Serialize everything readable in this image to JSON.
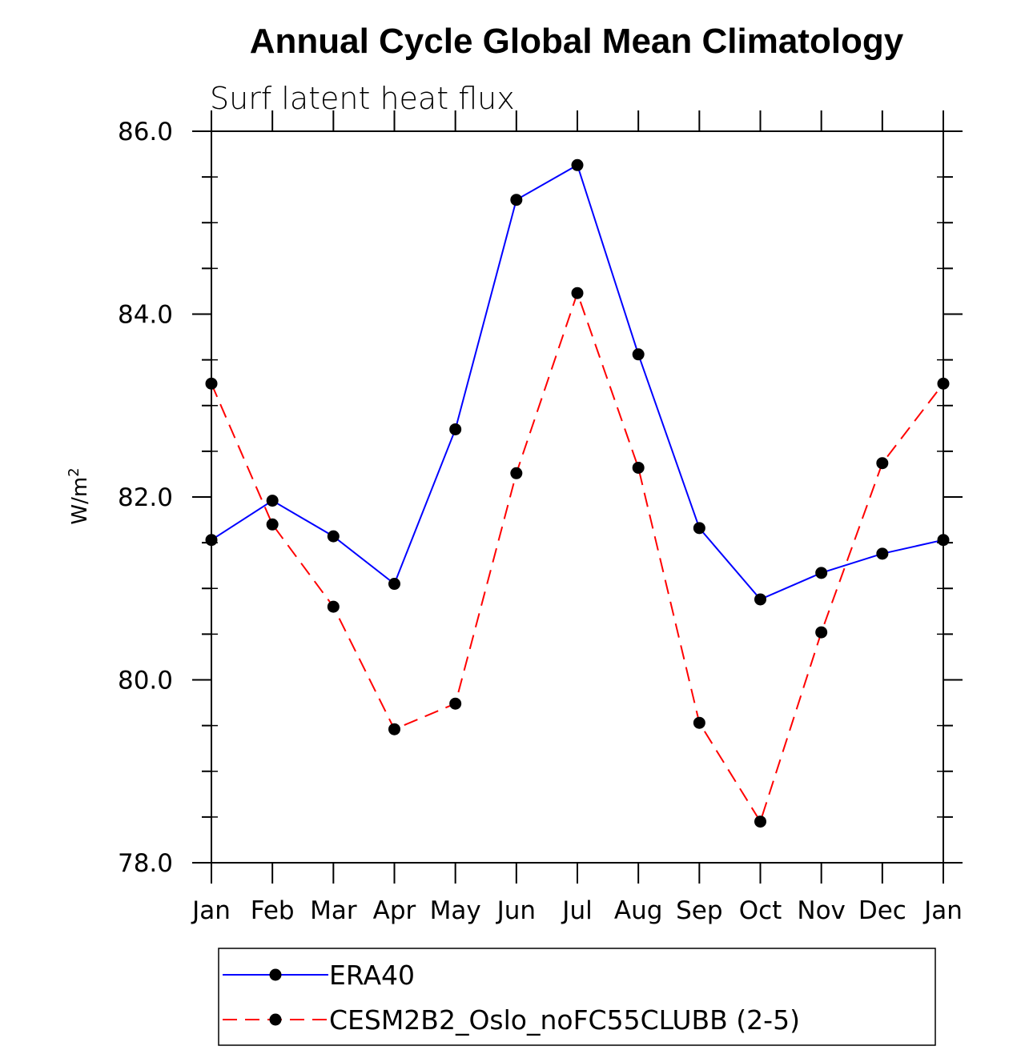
{
  "chart_data": {
    "type": "line",
    "title": "Annual Cycle Global Mean Climatology",
    "subtitle": "Surf latent heat flux",
    "ylabel": "W/m",
    "ylabel_superscript": "2",
    "ylim": [
      78.0,
      86.0
    ],
    "yticks": [
      "78.0",
      "80.0",
      "82.0",
      "84.0",
      "86.0"
    ],
    "categories": [
      "Jan",
      "Feb",
      "Mar",
      "Apr",
      "May",
      "Jun",
      "Jul",
      "Aug",
      "Sep",
      "Oct",
      "Nov",
      "Dec",
      "Jan"
    ],
    "series": [
      {
        "name": "ERA40",
        "color": "#0000ff",
        "dash": "solid",
        "values": [
          81.53,
          81.96,
          81.57,
          81.05,
          82.74,
          85.25,
          85.63,
          83.56,
          81.66,
          80.88,
          81.17,
          81.38,
          81.53
        ]
      },
      {
        "name": "CESM2B2_Oslo_noFC55CLUBB (2-5)",
        "color": "#ff0000",
        "dash": "dashed",
        "values": [
          83.24,
          81.7,
          80.8,
          79.46,
          79.74,
          82.26,
          84.23,
          82.32,
          79.53,
          78.45,
          80.52,
          82.37,
          83.24
        ]
      }
    ],
    "legend_position": "bottom"
  }
}
